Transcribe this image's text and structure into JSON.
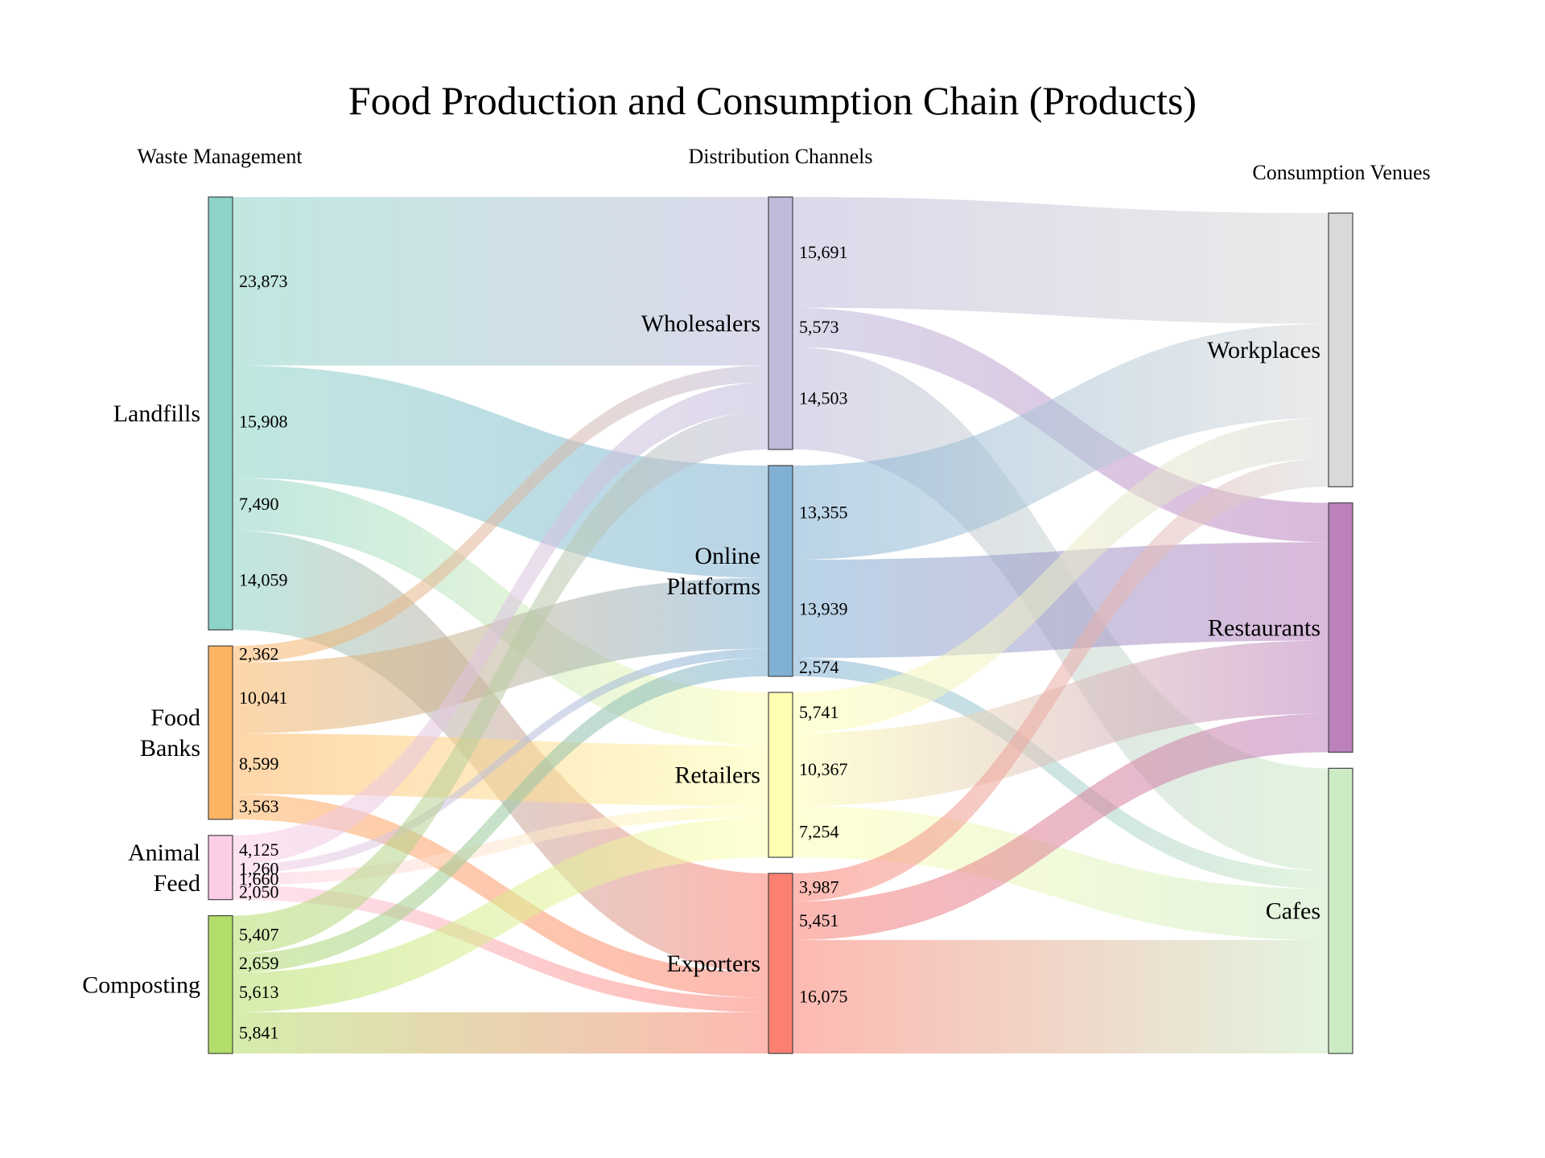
{
  "chart_data": {
    "type": "sankey",
    "title": "Food Production and Consumption Chain (Products)",
    "column_headers": [
      "Waste Management",
      "Distribution Channels",
      "Consumption Venues"
    ],
    "nodes": [
      {
        "id": "landfills",
        "label": "Landfills",
        "column": 0,
        "color": "#8dd3c7"
      },
      {
        "id": "food_banks",
        "label": "Food Banks",
        "column": 0,
        "color": "#fdb462"
      },
      {
        "id": "animal_feed",
        "label": "Animal Feed",
        "column": 0,
        "color": "#fccde5"
      },
      {
        "id": "composting",
        "label": "Composting",
        "column": 0,
        "color": "#b3de69"
      },
      {
        "id": "wholesalers",
        "label": "Wholesalers",
        "column": 1,
        "color": "#bebada"
      },
      {
        "id": "online",
        "label": "Online Platforms",
        "column": 1,
        "color": "#80b1d3"
      },
      {
        "id": "retailers",
        "label": "Retailers",
        "column": 1,
        "color": "#ffffb3"
      },
      {
        "id": "exporters",
        "label": "Exporters",
        "column": 1,
        "color": "#fb8072"
      },
      {
        "id": "workplaces",
        "label": "Workplaces",
        "column": 2,
        "color": "#d9d9d9"
      },
      {
        "id": "restaurants",
        "label": "Restaurants",
        "column": 2,
        "color": "#bc80bd"
      },
      {
        "id": "cafes",
        "label": "Cafes",
        "column": 2,
        "color": "#ccebc5"
      }
    ],
    "links": [
      {
        "source": "landfills",
        "target": "wholesalers",
        "value": 23873,
        "label": "23,873"
      },
      {
        "source": "landfills",
        "target": "online",
        "value": 15908,
        "label": "15,908"
      },
      {
        "source": "landfills",
        "target": "retailers",
        "value": 7490,
        "label": "7,490"
      },
      {
        "source": "landfills",
        "target": "exporters",
        "value": 14059,
        "label": "14,059"
      },
      {
        "source": "food_banks",
        "target": "wholesalers",
        "value": 2362,
        "label": "2,362"
      },
      {
        "source": "food_banks",
        "target": "online",
        "value": 10041,
        "label": "10,041"
      },
      {
        "source": "food_banks",
        "target": "retailers",
        "value": 8599,
        "label": "8,599"
      },
      {
        "source": "food_banks",
        "target": "exporters",
        "value": 3563,
        "label": "3,563"
      },
      {
        "source": "animal_feed",
        "target": "wholesalers",
        "value": 4125,
        "label": "4,125"
      },
      {
        "source": "animal_feed",
        "target": "online",
        "value": 1260,
        "label": "1,260"
      },
      {
        "source": "animal_feed",
        "target": "retailers",
        "value": 1660,
        "label": "1,660"
      },
      {
        "source": "animal_feed",
        "target": "exporters",
        "value": 2050,
        "label": "2,050"
      },
      {
        "source": "composting",
        "target": "wholesalers",
        "value": 5407,
        "label": "5,407"
      },
      {
        "source": "composting",
        "target": "online",
        "value": 2659,
        "label": "2,659"
      },
      {
        "source": "composting",
        "target": "retailers",
        "value": 5613,
        "label": "5,613"
      },
      {
        "source": "composting",
        "target": "exporters",
        "value": 5841,
        "label": "5,841"
      },
      {
        "source": "wholesalers",
        "target": "workplaces",
        "value": 15691,
        "label": "15,691"
      },
      {
        "source": "wholesalers",
        "target": "restaurants",
        "value": 5573,
        "label": "5,573"
      },
      {
        "source": "wholesalers",
        "target": "cafes",
        "value": 14503,
        "label": "14,503"
      },
      {
        "source": "online",
        "target": "workplaces",
        "value": 13355,
        "label": "13,355"
      },
      {
        "source": "online",
        "target": "restaurants",
        "value": 13939,
        "label": "13,939"
      },
      {
        "source": "online",
        "target": "cafes",
        "value": 2574,
        "label": "2,574"
      },
      {
        "source": "retailers",
        "target": "workplaces",
        "value": 5741,
        "label": "5,741"
      },
      {
        "source": "retailers",
        "target": "restaurants",
        "value": 10367,
        "label": "10,367"
      },
      {
        "source": "retailers",
        "target": "cafes",
        "value": 7254,
        "label": "7,254"
      },
      {
        "source": "exporters",
        "target": "workplaces",
        "value": 3987,
        "label": "3,987"
      },
      {
        "source": "exporters",
        "target": "restaurants",
        "value": 5451,
        "label": "5,451"
      },
      {
        "source": "exporters",
        "target": "cafes",
        "value": 16075,
        "label": "16,075"
      }
    ]
  }
}
